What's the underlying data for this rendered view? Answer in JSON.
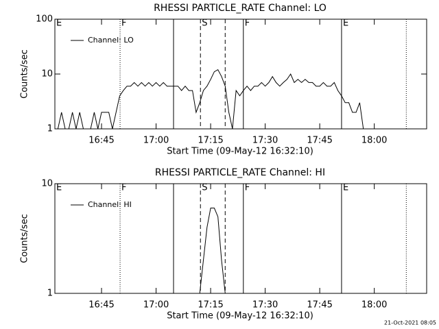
{
  "chart_data": [
    {
      "type": "line",
      "title": "RHESSI PARTICLE_RATE Channel: LO",
      "xlabel": "Start Time (09-May-12 16:32:10)",
      "ylabel": "Counts/sec",
      "log_y": true,
      "ylim": [
        1,
        100
      ],
      "yticks": [
        1,
        10,
        100
      ],
      "xlim": [
        32.17,
        134.4
      ],
      "xticks": [
        {
          "value": 45,
          "label": "16:45"
        },
        {
          "value": 60,
          "label": "17:00"
        },
        {
          "value": 75,
          "label": "17:15"
        },
        {
          "value": 90,
          "label": "17:30"
        },
        {
          "value": 105,
          "label": "17:45"
        },
        {
          "value": 120,
          "label": "18:00"
        }
      ],
      "x": [
        33,
        34,
        35,
        36,
        37,
        38,
        39,
        40,
        41,
        42,
        43,
        44,
        45,
        46,
        47,
        48,
        49,
        50,
        51,
        52,
        53,
        54,
        55,
        56,
        57,
        58,
        59,
        60,
        61,
        62,
        63,
        64,
        65,
        66,
        67,
        68,
        69,
        70,
        71,
        72,
        73,
        74,
        75,
        76,
        77,
        78,
        79,
        80,
        81,
        82,
        83,
        84,
        85,
        86,
        87,
        88,
        89,
        90,
        91,
        92,
        93,
        94,
        95,
        96,
        97,
        98,
        99,
        100,
        101,
        102,
        103,
        104,
        105,
        106,
        107,
        108,
        109,
        110,
        111,
        112,
        113,
        114,
        115,
        116,
        117,
        118
      ],
      "series": [
        {
          "name": "Channel: LO",
          "color": "#000000",
          "values": [
            1,
            2,
            1,
            1,
            2,
            1,
            2,
            1,
            1,
            1,
            2,
            1,
            2,
            2,
            2,
            1,
            2,
            4,
            5,
            6,
            6,
            7,
            6,
            7,
            6,
            7,
            6,
            7,
            6,
            7,
            6,
            6,
            6,
            6,
            5,
            6,
            5,
            5,
            2,
            3,
            5,
            6,
            8,
            11,
            12,
            9,
            6,
            2,
            1,
            5,
            4,
            5,
            6,
            5,
            6,
            6,
            7,
            6,
            7,
            9,
            7,
            6,
            7,
            8,
            10,
            7,
            8,
            7,
            8,
            7,
            7,
            6,
            6,
            7,
            6,
            6,
            7,
            5,
            4,
            3,
            3,
            2,
            2,
            3,
            1,
            1
          ]
        }
      ],
      "event_lines": [
        {
          "x": 50.1,
          "style": "dotted"
        },
        {
          "x": 64.8,
          "style": "solid"
        },
        {
          "x": 72.2,
          "style": "dashed"
        },
        {
          "x": 79.0,
          "style": "dashed"
        },
        {
          "x": 84.0,
          "style": "solid"
        },
        {
          "x": 111.0,
          "style": "solid"
        },
        {
          "x": 128.8,
          "style": "dotted"
        }
      ],
      "event_labels": [
        {
          "x": 32.17,
          "label": "E"
        },
        {
          "x": 50.1,
          "label": "F"
        },
        {
          "x": 72.2,
          "label": "S"
        },
        {
          "x": 84.0,
          "label": "F"
        },
        {
          "x": 111.0,
          "label": "E"
        }
      ]
    },
    {
      "type": "line",
      "title": "RHESSI PARTICLE_RATE Channel: HI",
      "xlabel": "Start Time (09-May-12 16:32:10)",
      "ylabel": "Counts/sec",
      "log_y": true,
      "ylim": [
        1,
        10
      ],
      "yticks": [
        1,
        10
      ],
      "xlim": [
        32.17,
        134.4
      ],
      "xticks": [
        {
          "value": 45,
          "label": "16:45"
        },
        {
          "value": 60,
          "label": "17:00"
        },
        {
          "value": 75,
          "label": "17:15"
        },
        {
          "value": 90,
          "label": "17:30"
        },
        {
          "value": 105,
          "label": "17:45"
        },
        {
          "value": 120,
          "label": "18:00"
        }
      ],
      "x": [
        72,
        73,
        74,
        75,
        76,
        77,
        78,
        79
      ],
      "series": [
        {
          "name": "Channel: HI",
          "color": "#000000",
          "values": [
            1,
            2,
            4,
            6,
            6,
            5,
            2,
            1
          ]
        }
      ],
      "event_lines": [
        {
          "x": 50.1,
          "style": "dotted"
        },
        {
          "x": 64.8,
          "style": "solid"
        },
        {
          "x": 72.2,
          "style": "dashed"
        },
        {
          "x": 79.0,
          "style": "dashed"
        },
        {
          "x": 84.0,
          "style": "solid"
        },
        {
          "x": 111.0,
          "style": "solid"
        },
        {
          "x": 128.8,
          "style": "dotted"
        }
      ],
      "event_labels": [
        {
          "x": 32.17,
          "label": "E"
        },
        {
          "x": 50.1,
          "label": "F"
        },
        {
          "x": 72.2,
          "label": "S"
        },
        {
          "x": 84.0,
          "label": "F"
        },
        {
          "x": 111.0,
          "label": "E"
        }
      ]
    }
  ],
  "footer": "21-Oct-2021 08:05"
}
